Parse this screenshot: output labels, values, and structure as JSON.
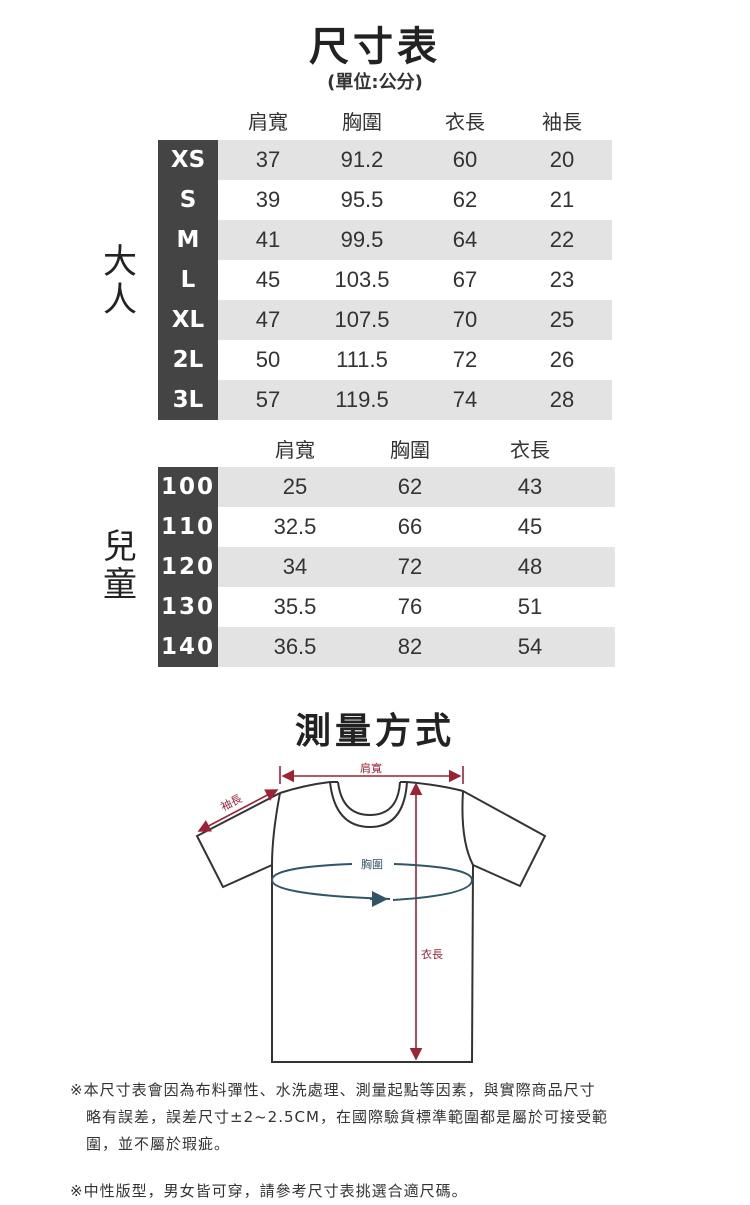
{
  "title": "尺寸表",
  "unit": "(單位:公分)",
  "adult": {
    "group_label": "大人",
    "headers": [
      "肩寬",
      "胸圍",
      "衣長",
      "袖長"
    ],
    "rows": [
      {
        "size": "XS",
        "values": [
          "37",
          "91.2",
          "60",
          "20"
        ]
      },
      {
        "size": "S",
        "values": [
          "39",
          "95.5",
          "62",
          "21"
        ]
      },
      {
        "size": "M",
        "values": [
          "41",
          "99.5",
          "64",
          "22"
        ]
      },
      {
        "size": "L",
        "values": [
          "45",
          "103.5",
          "67",
          "23"
        ]
      },
      {
        "size": "XL",
        "values": [
          "47",
          "107.5",
          "70",
          "25"
        ]
      },
      {
        "size": "2L",
        "values": [
          "50",
          "111.5",
          "72",
          "26"
        ]
      },
      {
        "size": "3L",
        "values": [
          "57",
          "119.5",
          "74",
          "28"
        ]
      }
    ]
  },
  "kids": {
    "group_label": "兒童",
    "headers": [
      "肩寬",
      "胸圍",
      "衣長"
    ],
    "rows": [
      {
        "size": "100",
        "values": [
          "25",
          "62",
          "43"
        ]
      },
      {
        "size": "110",
        "values": [
          "32.5",
          "66",
          "45"
        ]
      },
      {
        "size": "120",
        "values": [
          "34",
          "72",
          "48"
        ]
      },
      {
        "size": "130",
        "values": [
          "35.5",
          "76",
          "51"
        ]
      },
      {
        "size": "140",
        "values": [
          "36.5",
          "82",
          "54"
        ]
      }
    ]
  },
  "measure": {
    "title": "測量方式",
    "shoulder": "肩寬",
    "sleeve": "袖長",
    "chest": "胸圍",
    "length": "衣長"
  },
  "notes": {
    "note1_line1": "※本尺寸表會因為布料彈性、水洗處理、測量起點等因素，與實際商品尺寸",
    "note1_line2": "略有誤差，誤差尺寸±2~2.5CM，在國際驗貨標準範圍都是屬於可接受範",
    "note1_line3": "圍，並不屬於瑕疵。",
    "note2": "※中性版型，男女皆可穿，請參考尺寸表挑選合適尺碼。"
  },
  "colors": {
    "label_bg": "#444444",
    "row_gray": "#e3e3e3",
    "measure_red": "#9b2335",
    "chest_blue": "#2f5566"
  }
}
